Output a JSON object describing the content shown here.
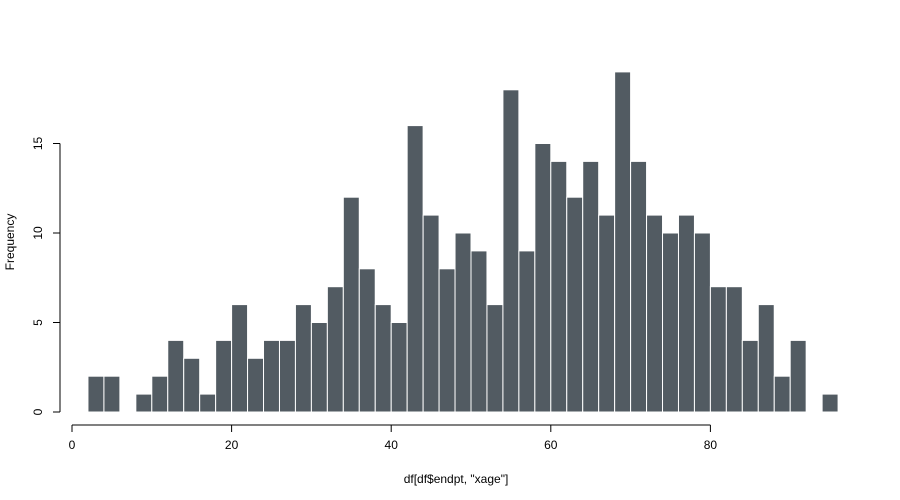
{
  "chart_data": {
    "type": "bar",
    "subtype": "histogram",
    "xlabel": "df[df$endpt, \"xage\"]",
    "ylabel": "Frequency",
    "xlim": [
      0,
      96
    ],
    "ylim": [
      0,
      19
    ],
    "x_ticks": [
      0,
      20,
      40,
      60,
      80
    ],
    "y_ticks": [
      0,
      5,
      10,
      15
    ],
    "bin_width": 2,
    "bin_starts": [
      2,
      4,
      6,
      8,
      10,
      12,
      14,
      16,
      18,
      20,
      22,
      24,
      26,
      28,
      30,
      32,
      34,
      36,
      38,
      40,
      42,
      44,
      46,
      48,
      50,
      52,
      54,
      56,
      58,
      60,
      62,
      64,
      66,
      68,
      70,
      72,
      74,
      76,
      78,
      80,
      82,
      84,
      86,
      88,
      90,
      92,
      94
    ],
    "values": [
      2,
      2,
      0,
      1,
      2,
      4,
      3,
      1,
      4,
      6,
      3,
      4,
      4,
      6,
      5,
      7,
      12,
      8,
      6,
      5,
      16,
      11,
      8,
      10,
      9,
      6,
      18,
      9,
      15,
      14,
      12,
      14,
      11,
      19,
      14,
      11,
      10,
      11,
      10,
      7,
      7,
      4,
      6,
      2,
      4,
      0,
      1
    ],
    "bar_color": "#525b62",
    "bar_border_color": "#ffffff",
    "grid": false
  }
}
